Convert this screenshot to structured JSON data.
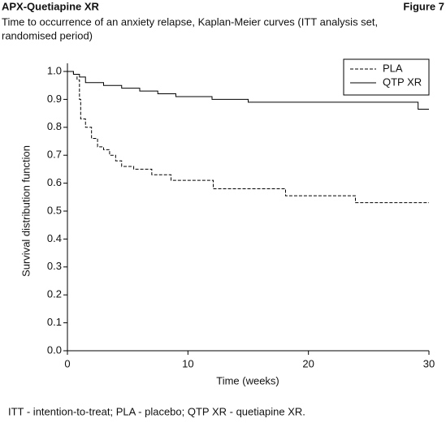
{
  "chart_data": {
    "type": "line",
    "step": true,
    "header": "APX-Quetiapine XR",
    "figure_label": "Figure 7",
    "title": "Time to occurrence of an anxiety relapse, Kaplan-Meier curves (ITT analysis set,",
    "title_line2": "randomised period)",
    "x_label": "Time (weeks)",
    "y_label": "Survival distribution function",
    "footnote": "ITT - intention-to-treat; PLA - placebo; QTP XR - quetiapine XR.",
    "xlim": [
      0,
      30
    ],
    "ylim": [
      0,
      1
    ],
    "xticks": [
      0,
      10,
      20,
      30
    ],
    "yticks": [
      {
        "value": 0,
        "label": "0.0"
      },
      0.1,
      0.2,
      0.3,
      0.4,
      0.5,
      0.6,
      0.7,
      0.8,
      0.9,
      {
        "value": 1,
        "label": "1.0"
      }
    ],
    "legend_position": "upper right",
    "series": [
      {
        "name": "PLA",
        "color": "#000000",
        "style": "dashed",
        "x": [
          0,
          0.5,
          0.8,
          1.0,
          1.1,
          1.5,
          2,
          2.5,
          3,
          3.5,
          4,
          4.5,
          5.5,
          7,
          8.6,
          12.1,
          18.1,
          23.9,
          30
        ],
        "values": [
          1.0,
          0.99,
          0.97,
          0.9,
          0.83,
          0.8,
          0.76,
          0.73,
          0.72,
          0.7,
          0.68,
          0.66,
          0.65,
          0.63,
          0.61,
          0.58,
          0.555,
          0.53,
          0.53
        ]
      },
      {
        "name": "QTP XR",
        "color": "#000000",
        "style": "solid",
        "x": [
          0,
          0.5,
          1.0,
          1.5,
          3,
          4.5,
          6,
          7.5,
          9,
          12,
          15,
          29.1,
          30
        ],
        "values": [
          1.0,
          0.99,
          0.98,
          0.96,
          0.95,
          0.94,
          0.93,
          0.92,
          0.91,
          0.9,
          0.89,
          0.865,
          0.865
        ]
      }
    ]
  }
}
